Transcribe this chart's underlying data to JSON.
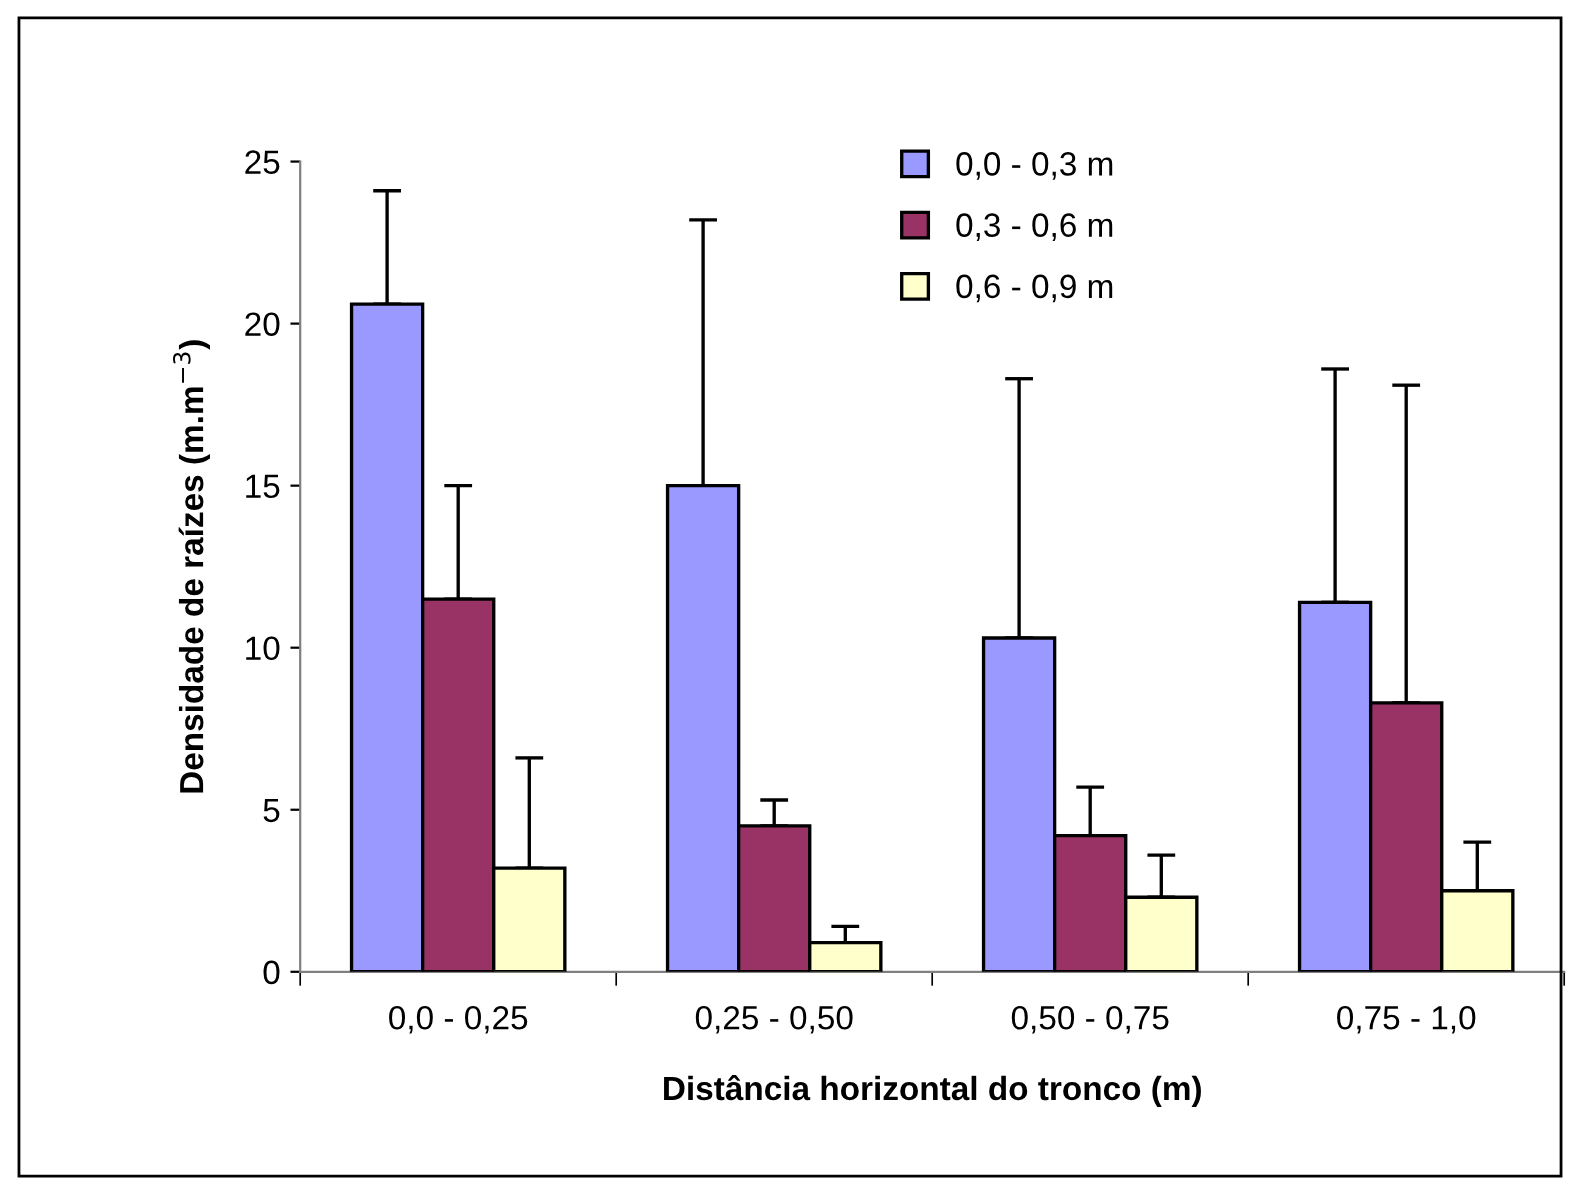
{
  "chart_data": {
    "type": "bar",
    "xlabel": "Distância horizontal do tronco (m)",
    "ylabel": "Densidade de raízes (m.m$^{−3}$)",
    "categories": [
      "0,0 - 0,25",
      "0,25 - 0,50",
      "0,50 - 0,75",
      "0,75 - 1,0"
    ],
    "series": [
      {
        "name": "0,0 - 0,3 m",
        "color": "#9999ff",
        "values": [
          20.6,
          15.0,
          10.3,
          11.4
        ],
        "errors": [
          [
            20.6,
            24.1
          ],
          [
            15.0,
            23.2
          ],
          [
            10.3,
            18.3
          ],
          [
            11.4,
            18.6
          ]
        ]
      },
      {
        "name": "0,3 - 0,6 m",
        "color": "#993366",
        "values": [
          11.5,
          4.5,
          4.2,
          8.3
        ],
        "errors": [
          [
            11.5,
            15.0
          ],
          [
            4.5,
            5.3
          ],
          [
            4.2,
            5.7
          ],
          [
            8.3,
            18.1
          ]
        ]
      },
      {
        "name": "0,6 - 0,9 m",
        "color": "#ffffcc",
        "values": [
          3.2,
          0.9,
          2.3,
          2.5
        ],
        "errors": [
          [
            3.2,
            6.6
          ],
          [
            0.9,
            1.4
          ],
          [
            2.3,
            3.6
          ],
          [
            2.5,
            4.0
          ]
        ]
      }
    ],
    "ylim": [
      0,
      25
    ],
    "yticks": [
      0,
      5,
      10,
      15,
      20,
      25
    ],
    "grid": false,
    "legend": "top"
  }
}
